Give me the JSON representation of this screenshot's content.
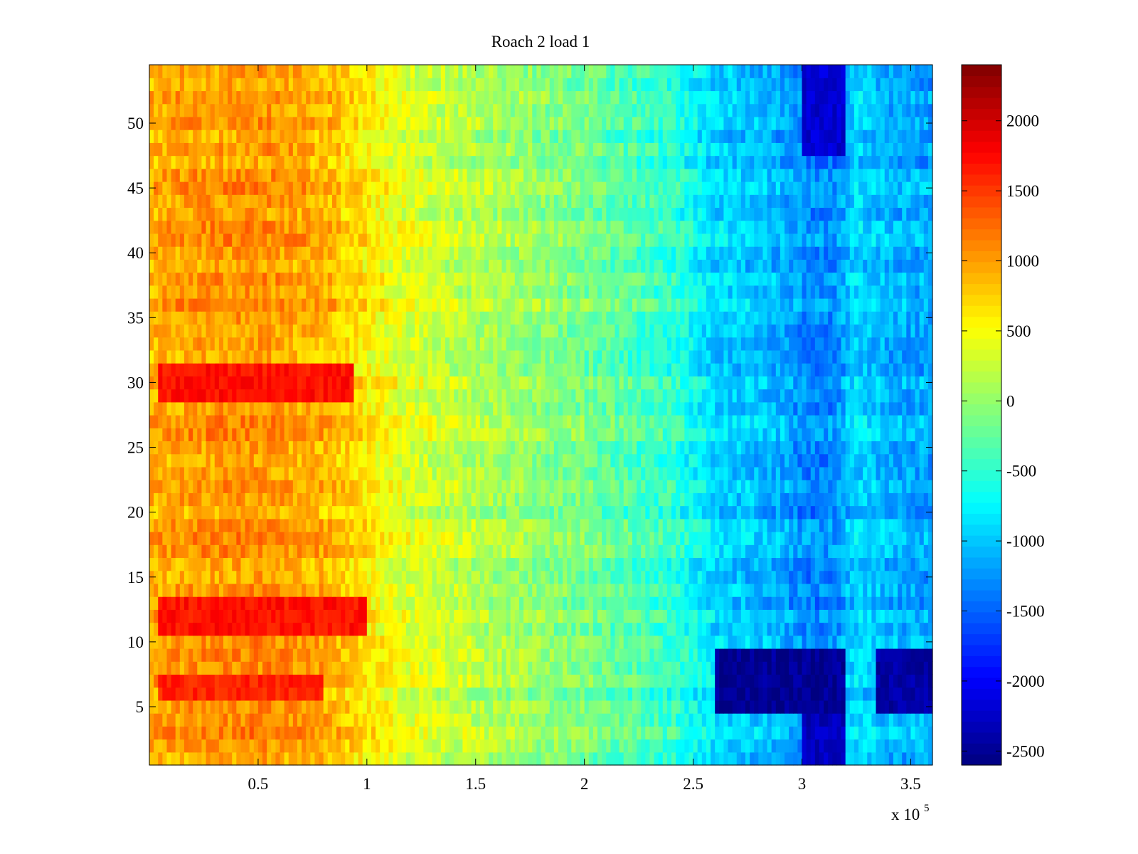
{
  "chart_data": {
    "type": "heatmap",
    "title": "Roach 2 load 1",
    "xlabel": "",
    "ylabel": "",
    "x_exponent_label": "x 10",
    "x_exponent_power": "5",
    "xlim": [
      0,
      3.6
    ],
    "ylim": [
      0.5,
      54.5
    ],
    "x_ticks": [
      0.5,
      1,
      1.5,
      2,
      2.5,
      3,
      3.5
    ],
    "x_tick_labels": [
      "0.5",
      "1",
      "1.5",
      "2",
      "2.5",
      "3",
      "3.5"
    ],
    "y_ticks": [
      5,
      10,
      15,
      20,
      25,
      30,
      35,
      40,
      45,
      50
    ],
    "y_tick_labels": [
      "5",
      "10",
      "15",
      "20",
      "25",
      "30",
      "35",
      "40",
      "45",
      "50"
    ],
    "colormap": "jet",
    "clim": [
      -2600,
      2400
    ],
    "colorbar_ticks": [
      2000,
      1500,
      1000,
      500,
      0,
      -500,
      -1000,
      -1500,
      -2000,
      -2500
    ],
    "colorbar_tick_labels": [
      "2000",
      "1500",
      "1000",
      "500",
      "0",
      "-500",
      "-1000",
      "-1500",
      "-2000",
      "-2500"
    ],
    "n_rows": 54,
    "x_profile": {
      "x": [
        0,
        0.2,
        0.5,
        0.8,
        1.0,
        1.2,
        1.5,
        2.0,
        2.4,
        2.6,
        2.9,
        3.0,
        3.15,
        3.25,
        3.4,
        3.6
      ],
      "values": [
        900,
        1000,
        1050,
        900,
        600,
        350,
        150,
        -150,
        -500,
        -900,
        -1100,
        -1300,
        -1300,
        -900,
        -1100,
        -1150
      ]
    },
    "features": [
      {
        "name": "hot band",
        "rows": [
          29,
          31
        ],
        "x_range": [
          0.05,
          0.95
        ],
        "value": 1700
      },
      {
        "name": "hot band",
        "rows": [
          11,
          13
        ],
        "x_range": [
          0.05,
          1.0
        ],
        "value": 1700
      },
      {
        "name": "hot band",
        "rows": [
          6,
          7
        ],
        "x_range": [
          0.05,
          0.8
        ],
        "value": 1600
      },
      {
        "name": "cold block",
        "rows": [
          5,
          9
        ],
        "x_range": [
          2.6,
          3.2
        ],
        "value": -2500
      },
      {
        "name": "cold block",
        "rows": [
          5,
          9
        ],
        "x_range": [
          3.35,
          3.6
        ],
        "value": -2400
      },
      {
        "name": "cold block",
        "rows": [
          1,
          4
        ],
        "x_range": [
          3.0,
          3.2
        ],
        "value": -2300
      },
      {
        "name": "cold block",
        "rows": [
          48,
          54
        ],
        "x_range": [
          3.0,
          3.2
        ],
        "value": -2200
      }
    ]
  }
}
